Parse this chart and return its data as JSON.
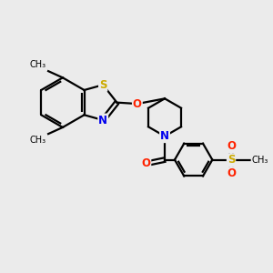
{
  "background_color": "#ebebeb",
  "bond_color": "#000000",
  "atom_colors": {
    "S_thia": "#ccaa00",
    "S_sulfonyl": "#ccaa00",
    "N": "#0000ee",
    "O": "#ff2200"
  },
  "figsize": [
    3.0,
    3.0
  ],
  "dpi": 100,
  "xlim": [
    -1.0,
    9.0
  ],
  "ylim": [
    -1.0,
    8.0
  ]
}
